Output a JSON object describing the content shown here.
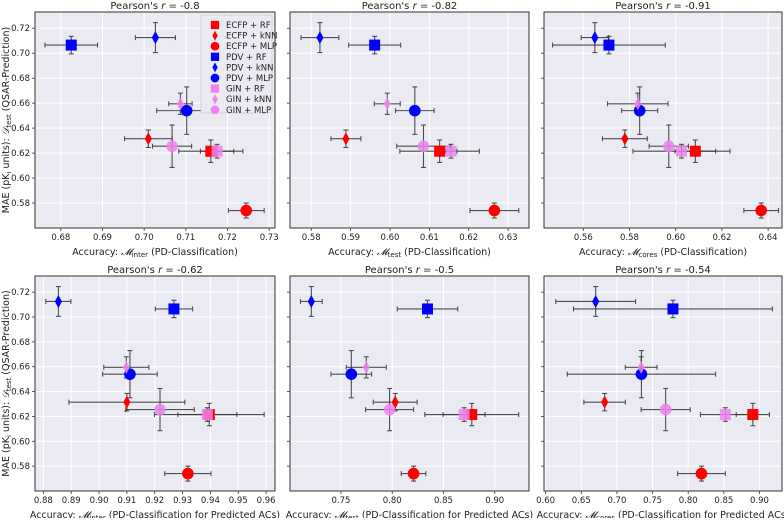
{
  "chart_data": {
    "type": "scatter",
    "description_style": "errorbar scatter, 2x6 grid of panels",
    "grid": true,
    "legend": {
      "placement": "top-right",
      "panel": 0
    },
    "ylabel": {
      "prefix": "MAE (pK",
      "sub1": "i",
      "mid": " units): ",
      "symbol": "𝒟",
      "sub2": "test",
      "suffix": " (QSAR-Prediction)"
    },
    "ylim": [
      0.56,
      0.733
    ],
    "yticks": [
      0.58,
      0.6,
      0.62,
      0.64,
      0.66,
      0.68,
      0.7,
      0.72
    ],
    "ytick_labels": [
      "0.58",
      "0.60",
      "0.62",
      "0.64",
      "0.66",
      "0.68",
      "0.70",
      "0.72"
    ],
    "models": [
      {
        "name": "ECFP + RF",
        "color": "#ff0000",
        "marker": "square",
        "y": 0.6215,
        "yerr": 0.009
      },
      {
        "name": "ECFP + kNN",
        "color": "#ff0000",
        "marker": "diamond",
        "y": 0.6315,
        "yerr": 0.007
      },
      {
        "name": "ECFP + MLP",
        "color": "#ff0000",
        "marker": "circle",
        "y": 0.574,
        "yerr": 0.006
      },
      {
        "name": "PDV + RF",
        "color": "#0000ff",
        "marker": "square",
        "y": 0.7065,
        "yerr": 0.007
      },
      {
        "name": "PDV + kNN",
        "color": "#0000ff",
        "marker": "diamond",
        "y": 0.7125,
        "yerr": 0.012
      },
      {
        "name": "PDV + MLP",
        "color": "#0000ff",
        "marker": "circle",
        "y": 0.654,
        "yerr": 0.019
      },
      {
        "name": "GIN + RF",
        "color": "#ee82ee",
        "marker": "square",
        "y": 0.6215,
        "yerr": 0.0055
      },
      {
        "name": "GIN + kNN",
        "color": "#ee82ee",
        "marker": "diamond",
        "y": 0.6595,
        "yerr": 0.0085
      },
      {
        "name": "GIN + MLP",
        "color": "#ee82ee",
        "marker": "circle",
        "y": 0.6255,
        "yerr": 0.017
      }
    ],
    "panels": [
      {
        "title": {
          "prefix": "Pearson's ",
          "r": "r",
          "value": " = -0.8"
        },
        "xlabel": {
          "prefix": "Accuracy: ",
          "symbol": "𝓜",
          "sub": "inter",
          "suffix": " (PD-Classification)"
        },
        "xlim": [
          0.6738,
          0.7314
        ],
        "xticks": [
          0.68,
          0.69,
          0.7,
          0.71,
          0.72,
          0.73
        ],
        "xtick_labels": [
          "0.68",
          "0.69",
          "0.70",
          "0.71",
          "0.72",
          "0.73"
        ],
        "x": [
          0.716,
          0.701,
          0.7245,
          0.6825,
          0.7027,
          0.7102,
          0.7175,
          0.7087,
          0.7067
        ],
        "xerr": [
          0.0077,
          0.0057,
          0.0043,
          0.0063,
          0.0048,
          0.0072,
          0.004,
          0.0028,
          0.0047
        ]
      },
      {
        "title": {
          "prefix": "Pearson's ",
          "r": "r",
          "value": " = -0.82"
        },
        "xlabel": {
          "prefix": "Accuracy: ",
          "symbol": "𝓜",
          "sub": "test",
          "suffix": " (PD-Classification)"
        },
        "xlim": [
          0.5746,
          0.6353
        ],
        "xticks": [
          0.58,
          0.59,
          0.6,
          0.61,
          0.62,
          0.63
        ],
        "xtick_labels": [
          "0.58",
          "0.59",
          "0.60",
          "0.61",
          "0.62",
          "0.63"
        ],
        "x": [
          0.6126,
          0.5888,
          0.6265,
          0.5961,
          0.5822,
          0.6063,
          0.6155,
          0.5993,
          0.6085
        ],
        "xerr": [
          0.0101,
          0.0038,
          0.0062,
          0.0066,
          0.0048,
          0.0049,
          0.0015,
          0.0033,
          0.0068
        ]
      },
      {
        "title": {
          "prefix": "Pearson's ",
          "r": "r",
          "value": " = -0.91"
        },
        "xlabel": {
          "prefix": "Accuracy: ",
          "symbol": "𝓜",
          "sub": "cores",
          "suffix": " (PD-Classification)"
        },
        "xlim": [
          0.543,
          0.646
        ],
        "xticks": [
          0.56,
          0.58,
          0.6,
          0.62,
          0.64
        ],
        "xtick_labels": [
          "0.56",
          "0.58",
          "0.60",
          "0.62",
          "0.64"
        ],
        "x": [
          0.6085,
          0.578,
          0.637,
          0.5711,
          0.565,
          0.5844,
          0.6025,
          0.5836,
          0.597
        ],
        "xerr": [
          0.0088,
          0.0097,
          0.0075,
          0.0244,
          0.0059,
          0.0078,
          0.021,
          0.0131,
          0.0085
        ]
      },
      {
        "title": {
          "prefix": "Pearson's ",
          "r": "r",
          "value": " = -0.62"
        },
        "xlabel": {
          "prefix": "Accuracy: ",
          "symbol": "𝓜",
          "sub": "inter",
          "suffix": " (PD-Classification for Predicted ACs)"
        },
        "xlim": [
          0.877,
          0.9632
        ],
        "xticks": [
          0.88,
          0.89,
          0.9,
          0.91,
          0.92,
          0.93,
          0.94,
          0.95,
          0.96
        ],
        "xtick_labels": [
          "0.88",
          "0.89",
          "0.90",
          "0.91",
          "0.92",
          "0.93",
          "0.94",
          "0.95",
          "0.96"
        ],
        "x": [
          0.9396,
          0.91,
          0.9319,
          0.9269,
          0.8854,
          0.9111,
          0.9389,
          0.9098,
          0.9219
        ],
        "xerr": [
          0.0197,
          0.0208,
          0.0083,
          0.0067,
          0.0045,
          0.0098,
          0.0106,
          0.0081,
          0.0123
        ]
      },
      {
        "title": {
          "prefix": "Pearson's ",
          "r": "r",
          "value": " = -0.5"
        },
        "xlabel": {
          "prefix": "Accuracy: ",
          "symbol": "𝓜",
          "sub": "test",
          "suffix": " (PD-Classification for Predicted ACs)"
        },
        "xlim": [
          0.7003,
          0.9334
        ],
        "xticks": [
          0.75,
          0.8,
          0.85,
          0.9
        ],
        "xtick_labels": [
          "0.75",
          "0.80",
          "0.85",
          "0.90"
        ],
        "x": [
          0.8776,
          0.8029,
          0.8208,
          0.8344,
          0.7211,
          0.7601,
          0.8701,
          0.7747,
          0.7974
        ],
        "xerr": [
          0.0458,
          0.0214,
          0.012,
          0.0295,
          0.0106,
          0.0198,
          0.0205,
          0.0195,
          0.0234
        ]
      },
      {
        "title": {
          "prefix": "Pearson's ",
          "r": "r",
          "value": " = -0.54"
        },
        "xlabel": {
          "prefix": "Accuracy: ",
          "symbol": "𝓜",
          "sub": "cores",
          "suffix": " (PD-Classification for Predicted ACs)"
        },
        "xlim": [
          0.5977,
          0.9316
        ],
        "xticks": [
          0.6,
          0.65,
          0.7,
          0.75,
          0.8,
          0.85,
          0.9
        ],
        "xtick_labels": [
          "0.60",
          "0.65",
          "0.70",
          "0.75",
          "0.80",
          "0.85",
          "0.90"
        ],
        "x": [
          0.8907,
          0.6828,
          0.8186,
          0.7786,
          0.6702,
          0.7344,
          0.8521,
          0.734,
          0.7684
        ],
        "xerr": [
          0.0233,
          0.0291,
          0.0335,
          0.1395,
          0.056,
          0.104,
          0.0349,
          0.0223,
          0.0344
        ]
      }
    ]
  }
}
